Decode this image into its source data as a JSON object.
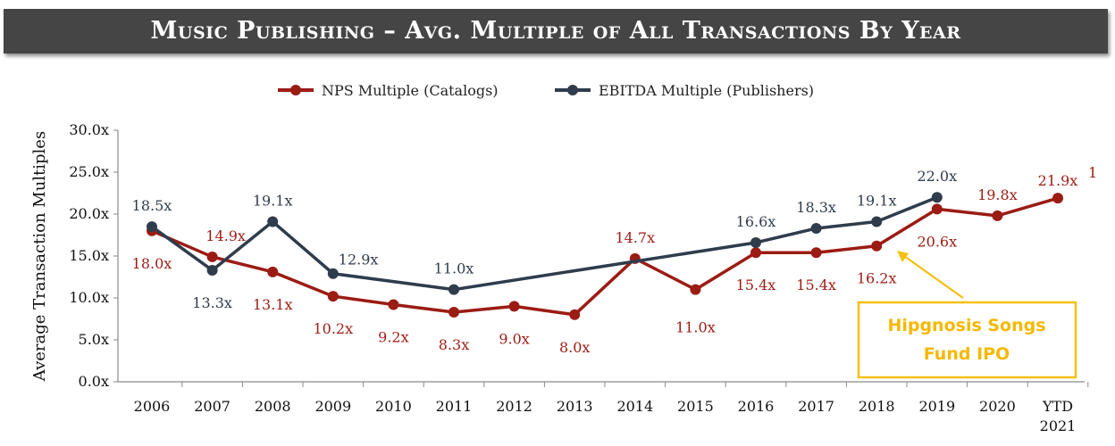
{
  "header": {
    "title": "Music Publishing – Avg. Multiple of All Transactions By Year"
  },
  "colors": {
    "nps": "#9b1c14",
    "ebitda": "#2f3c4c",
    "callout": "#f5c010",
    "banner": "#454545"
  },
  "callout": {
    "line1": "Hipgnosis Songs",
    "line2": "Fund IPO"
  },
  "chart_data": {
    "type": "line",
    "title": "Music Publishing – Avg. Multiple of All Transactions By Year",
    "xlabel": "",
    "ylabel": "Average Transaction Multiples",
    "ylim": [
      0,
      30
    ],
    "yticks": [
      "0.0x",
      "5.0x",
      "10.0x",
      "15.0x",
      "20.0x",
      "25.0x",
      "30.0x"
    ],
    "categories": [
      "2006",
      "2007",
      "2008",
      "2009",
      "2010",
      "2011",
      "2012",
      "2013",
      "2014",
      "2015",
      "2016",
      "2017",
      "2018",
      "2019",
      "2020",
      "YTD 2021"
    ],
    "legend_position": "top-center",
    "grid": false,
    "series": [
      {
        "name": "NPS Multiple (Catalogs)",
        "values": [
          18.0,
          14.9,
          13.1,
          10.2,
          9.2,
          8.3,
          9.0,
          8.0,
          14.7,
          11.0,
          15.4,
          15.4,
          16.2,
          20.6,
          19.8,
          21.9
        ],
        "labels": [
          "18.0x",
          "14.9x",
          "13.1x",
          "10.2x",
          "9.2x",
          "8.3x",
          "9.0x",
          "8.0x",
          "14.7x",
          "11.0x",
          "15.4x",
          "15.4x",
          "16.2x",
          "20.6x",
          "19.8x",
          "21.9x"
        ]
      },
      {
        "name": "EBITDA Multiple (Publishers)",
        "values": [
          18.5,
          13.3,
          19.1,
          12.9,
          null,
          11.0,
          null,
          null,
          null,
          null,
          16.6,
          18.3,
          19.1,
          22.0,
          null,
          null
        ],
        "labels": [
          "18.5x",
          "13.3x",
          "19.1x",
          "12.9x",
          null,
          "11.0x",
          null,
          null,
          null,
          null,
          "16.6x",
          "18.3x",
          "19.1x",
          "22.0x",
          null,
          null
        ]
      }
    ],
    "annotations": [
      "1"
    ]
  }
}
